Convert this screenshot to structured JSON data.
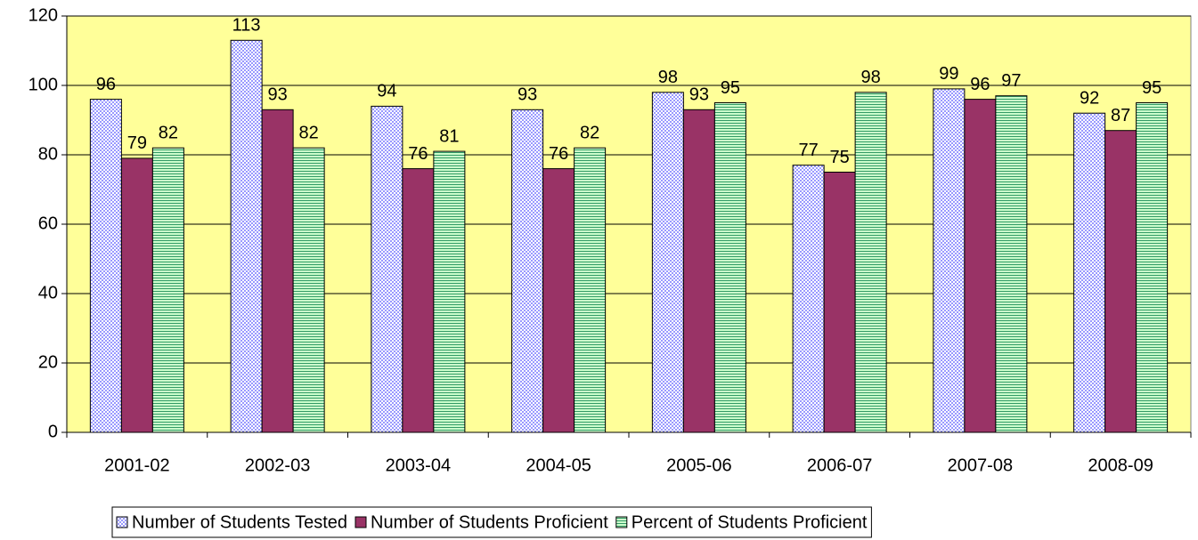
{
  "chart_data": {
    "type": "bar",
    "categories": [
      "2001-02",
      "2002-03",
      "2003-04",
      "2004-05",
      "2005-06",
      "2006-07",
      "2007-08",
      "2008-09"
    ],
    "series": [
      {
        "name": "Number of Students Tested",
        "color": "#9999ff",
        "pattern": "checker",
        "values": [
          96,
          113,
          94,
          93,
          98,
          77,
          99,
          92
        ]
      },
      {
        "name": "Number of Students Proficient",
        "color": "#993366",
        "pattern": "solid",
        "values": [
          79,
          93,
          76,
          76,
          93,
          75,
          96,
          87
        ]
      },
      {
        "name": "Percent of Students Proficient",
        "color": "#339966",
        "pattern": "hstripe",
        "values": [
          82,
          82,
          81,
          82,
          95,
          98,
          97,
          95
        ]
      }
    ],
    "ylim": [
      0,
      120
    ],
    "yticks": [
      0,
      20,
      40,
      60,
      80,
      100,
      120
    ],
    "grid": true,
    "plot_background": "#ffff99",
    "legend": "bottom"
  }
}
